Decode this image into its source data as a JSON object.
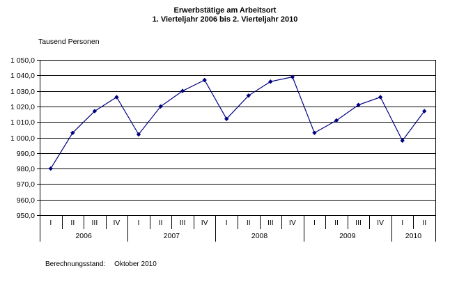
{
  "header": {
    "title": "Erwerbstätige am Arbeitsort",
    "subtitle": "1. Vierteljahr 2006 bis 2. Vierteljahr 2010"
  },
  "footer": {
    "label": "Berechnungsstand:",
    "value": "Oktober 2010"
  },
  "chart_data": {
    "type": "line",
    "title": "Erwerbstätige am Arbeitsort",
    "subtitle": "1. Vierteljahr 2006 bis 2. Vierteljahr 2010",
    "ylabel": "Tausend Personen",
    "xlabel": "",
    "ylim": [
      950,
      1050
    ],
    "ytick_step": 10,
    "ytick_labels": [
      "1 050,0",
      "1 040,0",
      "1 030,0",
      "1 020,0",
      "1 010,0",
      "1 000,0",
      "990,0",
      "980,0",
      "970,0",
      "960,0",
      "950,0"
    ],
    "grid": true,
    "legend": "none",
    "line_color": "#000080",
    "marker": "diamond",
    "years": [
      {
        "label": "2006",
        "quarters": [
          "I",
          "II",
          "III",
          "IV"
        ]
      },
      {
        "label": "2007",
        "quarters": [
          "I",
          "II",
          "III",
          "IV"
        ]
      },
      {
        "label": "2008",
        "quarters": [
          "I",
          "II",
          "III",
          "IV"
        ]
      },
      {
        "label": "2009",
        "quarters": [
          "I",
          "II",
          "III",
          "IV"
        ]
      },
      {
        "label": "2010",
        "quarters": [
          "I",
          "II"
        ]
      }
    ],
    "series": [
      {
        "name": "Erwerbstätige am Arbeitsort",
        "values": [
          980,
          1003,
          1017,
          1026,
          1002,
          1020,
          1030,
          1037,
          1012,
          1027,
          1036,
          1039,
          1003,
          1011,
          1021,
          1026,
          998,
          1017
        ]
      }
    ]
  }
}
